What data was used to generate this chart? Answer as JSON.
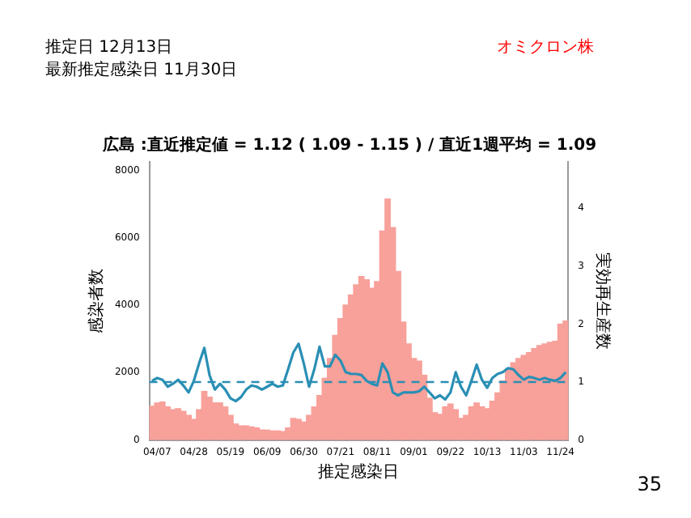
{
  "chart_data": {
    "type": "bar",
    "title": "広島 :直近推定値 = 1.12 ( 1.09 - 1.15 ) / 直近1週平均 = 1.09",
    "xlabel": "推定感染日",
    "ylabel": "感染者数",
    "y2label": "実効再生産数",
    "annotations": [
      "推定日 12月13日",
      "最新推定感染日 11月30日",
      "オミクロン株",
      "35"
    ],
    "categories": [
      null,
      "04/07",
      null,
      null,
      null,
      null,
      null,
      null,
      "04/28",
      null,
      null,
      null,
      null,
      null,
      null,
      "05/19",
      null,
      null,
      null,
      null,
      null,
      null,
      "06/09",
      null,
      null,
      null,
      null,
      null,
      null,
      "06/30",
      null,
      null,
      null,
      null,
      null,
      null,
      "07/21",
      null,
      null,
      null,
      null,
      null,
      null,
      "08/11",
      null,
      null,
      null,
      null,
      null,
      null,
      "09/01",
      null,
      null,
      null,
      null,
      null,
      null,
      "09/22",
      null,
      null,
      null,
      null,
      null,
      null,
      "10/13",
      null,
      null,
      null,
      null,
      null,
      null,
      "11/03",
      null,
      null,
      null,
      null,
      null,
      null,
      "11/24",
      null
    ],
    "series": [
      {
        "color": "#f8a09a",
        "values": [
          1000,
          1100,
          1130,
          980,
          900,
          930,
          850,
          730,
          610,
          900,
          1440,
          1270,
          1100,
          1100,
          980,
          730,
          470,
          420,
          420,
          390,
          360,
          300,
          290,
          270,
          270,
          250,
          360,
          640,
          610,
          530,
          730,
          980,
          1320,
          1830,
          2420,
          3100,
          3600,
          4000,
          4300,
          4600,
          4850,
          4750,
          4500,
          4700,
          6200,
          7150,
          6300,
          5000,
          3500,
          2850,
          2420,
          2340,
          1920,
          1240,
          810,
          760,
          980,
          1070,
          900,
          640,
          730,
          980,
          1100,
          980,
          930,
          1150,
          1400,
          1750,
          2120,
          2290,
          2420,
          2510,
          2590,
          2710,
          2800,
          2850,
          2900,
          2930,
          3440,
          3530
        ]
      },
      {
        "type": "line",
        "axis": "y2",
        "color": "#2a8fb4",
        "values": [
          1.02,
          1.07,
          1.04,
          0.92,
          0.97,
          1.04,
          0.94,
          0.82,
          1.02,
          1.32,
          1.59,
          1.12,
          0.87,
          0.97,
          0.87,
          0.72,
          0.67,
          0.74,
          0.87,
          0.94,
          0.92,
          0.87,
          0.92,
          0.97,
          0.92,
          0.94,
          1.22,
          1.51,
          1.66,
          1.32,
          0.92,
          1.22,
          1.61,
          1.27,
          1.27,
          1.47,
          1.37,
          1.17,
          1.14,
          1.14,
          1.12,
          1.02,
          0.97,
          0.94,
          1.32,
          1.17,
          0.82,
          0.77,
          0.82,
          0.82,
          0.82,
          0.84,
          0.92,
          0.82,
          0.72,
          0.77,
          0.7,
          0.82,
          1.17,
          0.92,
          0.77,
          1.02,
          1.3,
          1.04,
          0.9,
          1.07,
          1.14,
          1.17,
          1.24,
          1.22,
          1.12,
          1.04,
          1.09,
          1.07,
          1.04,
          1.07,
          1.04,
          1.02,
          1.07,
          1.17
        ]
      }
    ],
    "ylim": [
      0,
      8250
    ],
    "yticks": [
      0,
      2000,
      4000,
      6000,
      8000
    ],
    "y2lim": [
      0,
      4.8
    ],
    "y2ticks": [
      0,
      1,
      2,
      3,
      4
    ],
    "ref_lines": [
      {
        "axis": "y2",
        "value": 1,
        "color": "#2a8fb4",
        "line_style": "dashed"
      }
    ],
    "grid": false,
    "legend": false,
    "marker": "none"
  }
}
